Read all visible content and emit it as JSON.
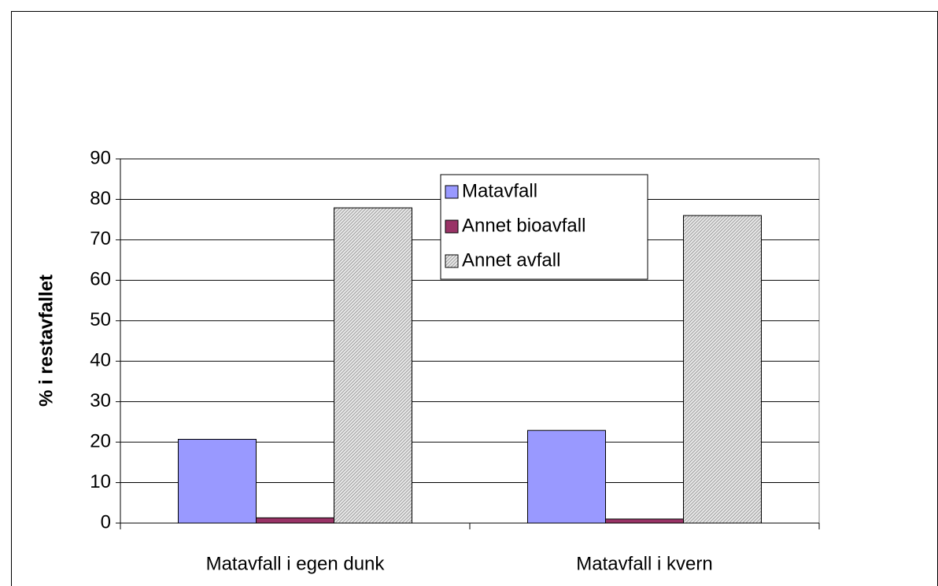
{
  "chart_data": {
    "type": "bar",
    "ylabel": "% i restavfallet",
    "categories": [
      "Matavfall i egen dunk",
      "Matavfall i kvern"
    ],
    "series": [
      {
        "name": "Matavfall",
        "color": "#9999ff",
        "values": [
          20.7,
          22.9
        ]
      },
      {
        "name": "Annet bioavfall",
        "color": "#993366",
        "values": [
          1.3,
          1.0
        ]
      },
      {
        "name": "Annet avfall",
        "color": "#808080",
        "hatch": true,
        "values": [
          77.9,
          76.0
        ]
      }
    ],
    "ylim": [
      0,
      90
    ],
    "yticks": [
      0,
      10,
      20,
      30,
      40,
      50,
      60,
      70,
      80,
      90
    ],
    "grid": true
  }
}
